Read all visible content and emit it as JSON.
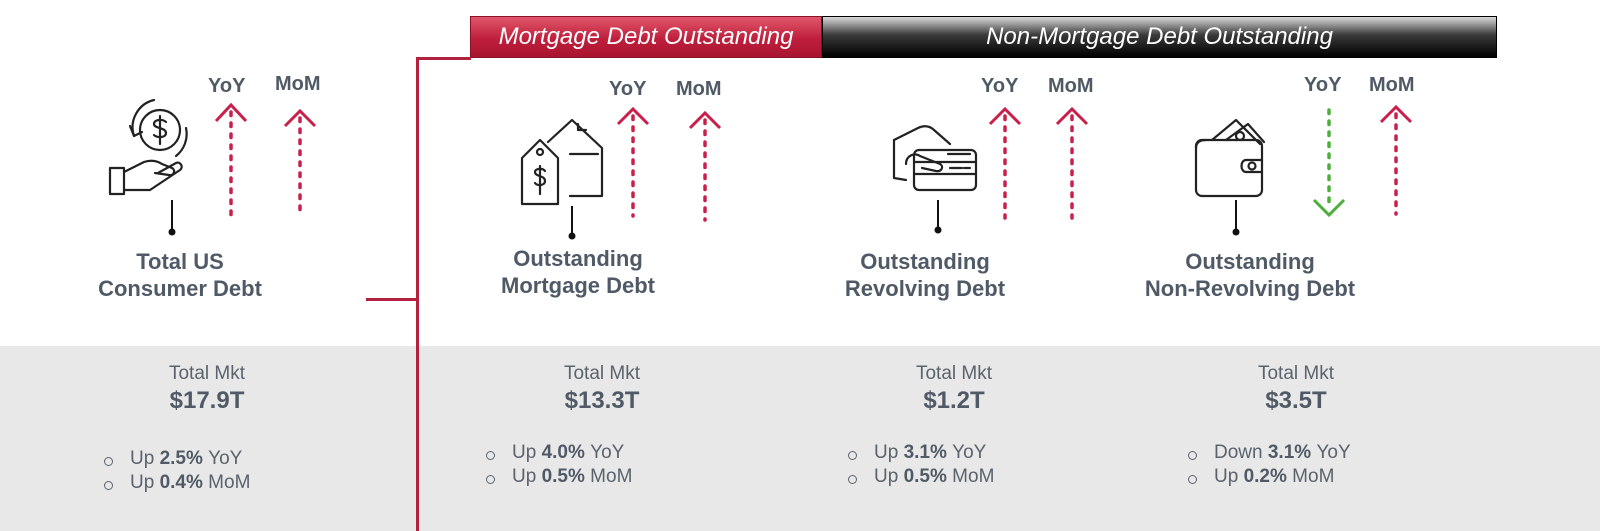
{
  "headers": {
    "mortgage": "Mortgage Debt Outstanding",
    "non_mortgage": "Non-Mortgage Debt Outstanding"
  },
  "colors": {
    "up": "#c8204a",
    "down": "#4caf3a",
    "mortgage_header": "#bf1f3c",
    "non_mortgage_header": "#000000",
    "band": "#e8e8e8"
  },
  "cards": [
    {
      "icon": "hand-coin-icon",
      "yoy_label": "YoY",
      "mom_label": "MoM",
      "yoy_direction": "up",
      "mom_direction": "up",
      "label_lines": [
        "Total US",
        "Consumer Debt"
      ],
      "market_caption": "Total Mkt",
      "market_value": "$17.9T",
      "yoy_word": "Up",
      "yoy_value": "2.5%",
      "yoy_suffix": "YoY",
      "mom_word": "Up",
      "mom_value": "0.4%",
      "mom_suffix": "MoM"
    },
    {
      "icon": "house-price-tag-icon",
      "yoy_label": "YoY",
      "mom_label": "MoM",
      "yoy_direction": "up",
      "mom_direction": "up",
      "label_lines": [
        "Outstanding",
        "Mortgage Debt"
      ],
      "market_caption": "Total Mkt",
      "market_value": "$13.3T",
      "yoy_word": "Up",
      "yoy_value": "4.0%",
      "yoy_suffix": "YoY",
      "mom_word": "Up",
      "mom_value": "0.5%",
      "mom_suffix": "MoM"
    },
    {
      "icon": "hand-credit-card-icon",
      "yoy_label": "YoY",
      "mom_label": "MoM",
      "yoy_direction": "up",
      "mom_direction": "up",
      "label_lines": [
        "Outstanding",
        "Revolving Debt"
      ],
      "market_caption": "Total Mkt",
      "market_value": "$1.2T",
      "yoy_word": "Up",
      "yoy_value": "3.1%",
      "yoy_suffix": "YoY",
      "mom_word": "Up",
      "mom_value": "0.5%",
      "mom_suffix": "MoM"
    },
    {
      "icon": "wallet-cash-icon",
      "yoy_label": "YoY",
      "mom_label": "MoM",
      "yoy_direction": "down",
      "mom_direction": "up",
      "label_lines": [
        "Outstanding",
        "Non-Revolving Debt"
      ],
      "market_caption": "Total Mkt",
      "market_value": "$3.5T",
      "yoy_word": "Down",
      "yoy_value": "3.1%",
      "yoy_suffix": "YoY",
      "mom_word": "Up",
      "mom_value": "0.2%",
      "mom_suffix": "MoM"
    }
  ]
}
